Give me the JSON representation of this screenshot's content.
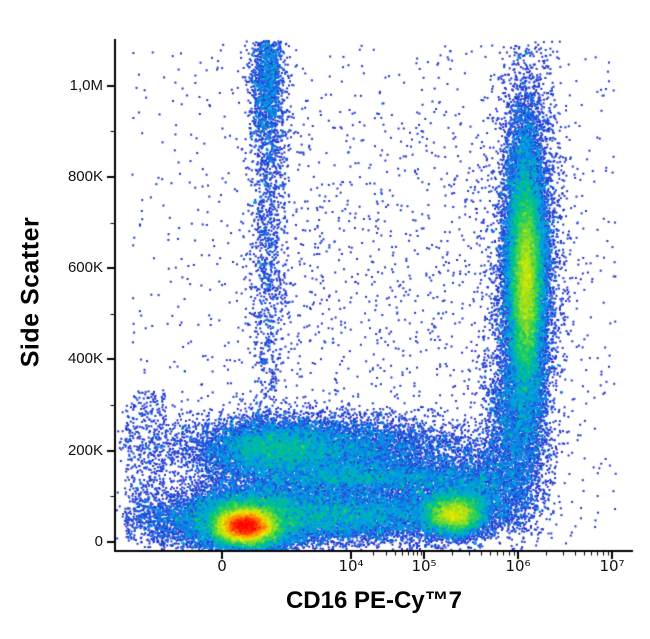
{
  "chart_data": {
    "type": "density-scatter",
    "title": "",
    "xlabel": "CD16 PE-Cy™7",
    "ylabel": "Side Scatter",
    "x_scale": "biexponential",
    "y_scale": "linear",
    "ylim": [
      -20000,
      1100000
    ],
    "grid": false,
    "legend": "none",
    "x_ticks": [
      {
        "label": "0",
        "u": 0.207
      },
      {
        "label": "10⁴",
        "u": 0.4565
      },
      {
        "label": "10⁵",
        "u": 0.5977
      },
      {
        "label": "10⁶",
        "u": 0.7795
      },
      {
        "label": "10⁷",
        "u": 0.9613
      }
    ],
    "x_minor_decades": [
      [
        0.4565,
        0.5977
      ],
      [
        0.5977,
        0.7795
      ],
      [
        0.7795,
        0.9613
      ]
    ],
    "y_ticks": [
      {
        "value": 0,
        "label": "0"
      },
      {
        "value": 200000,
        "label": "200K"
      },
      {
        "value": 400000,
        "label": "400K"
      },
      {
        "value": 600000,
        "label": "600K"
      },
      {
        "value": 800000,
        "label": "800K"
      },
      {
        "value": 1000000,
        "label": "1,0M"
      }
    ],
    "y_minor_step": 100000,
    "density_ref": 135,
    "colormap": [
      [
        0.0,
        [
          20,
          20,
          150
        ]
      ],
      [
        0.18,
        [
          35,
          60,
          220
        ]
      ],
      [
        0.38,
        [
          0,
          165,
          230
        ]
      ],
      [
        0.52,
        [
          0,
          200,
          120
        ]
      ],
      [
        0.66,
        [
          130,
          220,
          40
        ]
      ],
      [
        0.78,
        [
          235,
          235,
          0
        ]
      ],
      [
        0.88,
        [
          255,
          140,
          0
        ]
      ],
      [
        1.0,
        [
          255,
          0,
          0
        ]
      ]
    ],
    "populations": [
      {
        "name": "lymphocytes-core",
        "type": "gauss",
        "x_u": 0.252,
        "y": 35000,
        "sx_u": 0.027,
        "sy": 18000,
        "count": 24000
      },
      {
        "name": "lymphocytes-halo",
        "type": "gauss",
        "x_u": 0.258,
        "y": 48000,
        "sx_u": 0.055,
        "sy": 38000,
        "count": 9000
      },
      {
        "name": "low-ssc-band",
        "type": "gauss",
        "x_u": 0.42,
        "y": 60000,
        "sx_u": 0.13,
        "sy": 32000,
        "count": 9500
      },
      {
        "name": "low-ssc-left-tail",
        "type": "gauss",
        "x_u": 0.15,
        "y": 45000,
        "sx_u": 0.06,
        "sy": 32000,
        "count": 1600
      },
      {
        "name": "monocytes-band",
        "type": "gauss",
        "x_u": 0.4,
        "y": 200000,
        "sx_u": 0.14,
        "sy": 38000,
        "count": 8500
      },
      {
        "name": "monocytes-left-core",
        "type": "gauss",
        "x_u": 0.3,
        "y": 205000,
        "sx_u": 0.06,
        "sy": 28000,
        "count": 3800
      },
      {
        "name": "mid-ssc-streak",
        "type": "gauss",
        "x_u": 0.49,
        "y": 140000,
        "sx_u": 0.11,
        "sy": 16000,
        "count": 3200
      },
      {
        "name": "cd16-dim-blob-core",
        "type": "gauss",
        "x_u": 0.657,
        "y": 60000,
        "sx_u": 0.026,
        "sy": 20000,
        "count": 7000
      },
      {
        "name": "cd16-dim-blob-halo",
        "type": "gauss",
        "x_u": 0.648,
        "y": 80000,
        "sx_u": 0.05,
        "sy": 40000,
        "count": 2800
      },
      {
        "name": "cd16-bright-granulocytes",
        "type": "gauss",
        "x_u": 0.795,
        "y": 580000,
        "sx_u": 0.02,
        "sy": 165000,
        "count": 16000
      },
      {
        "name": "granulocytes-core",
        "type": "gauss",
        "x_u": 0.795,
        "y": 570000,
        "sx_u": 0.013,
        "sy": 90000,
        "count": 9000
      },
      {
        "name": "granulocytes-fringe",
        "type": "gauss",
        "x_u": 0.795,
        "y": 600000,
        "sx_u": 0.036,
        "sy": 235000,
        "count": 3800
      },
      {
        "name": "granulocyte-bridge",
        "type": "gauss",
        "x_u": 0.77,
        "y": 250000,
        "sx_u": 0.03,
        "sy": 90000,
        "count": 2200
      },
      {
        "name": "bridge-low",
        "type": "gauss",
        "x_u": 0.72,
        "y": 120000,
        "sx_u": 0.05,
        "sy": 45000,
        "count": 1800
      },
      {
        "name": "debris-column-top",
        "type": "gauss",
        "x_u": 0.296,
        "y": 1010000,
        "sx_u": 0.016,
        "sy": 80000,
        "count": 1500
      },
      {
        "name": "debris-column",
        "type": "gauss",
        "x_u": 0.296,
        "y": 700000,
        "sx_u": 0.02,
        "sy": 260000,
        "count": 1500
      },
      {
        "name": "background-scatter",
        "type": "uniform",
        "x0": 0.03,
        "x1": 0.97,
        "y0": 0,
        "y1": 1090000,
        "count": 1100
      },
      {
        "name": "left-edge-scatter",
        "type": "uniform",
        "x0": 0.02,
        "x1": 0.1,
        "y0": 0,
        "y1": 330000,
        "count": 500
      },
      {
        "name": "mid-sparse-scatter",
        "type": "uniform",
        "x0": 0.35,
        "x1": 0.72,
        "y0": 280000,
        "y1": 950000,
        "count": 400
      }
    ]
  }
}
